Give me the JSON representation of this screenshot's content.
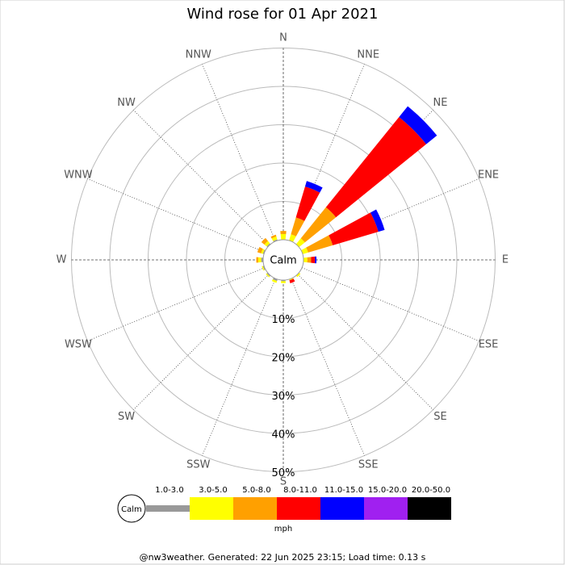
{
  "chart_data": {
    "type": "wind-rose",
    "title": "Wind rose for 01 Apr 2021",
    "calm_label": "Calm",
    "directions": [
      "N",
      "NNE",
      "NE",
      "ENE",
      "E",
      "ESE",
      "SE",
      "SSE",
      "S",
      "SSW",
      "SW",
      "WSW",
      "W",
      "WNW",
      "NW",
      "NNW"
    ],
    "series": [
      {
        "name": "1.0-3.0",
        "color": "#999999",
        "values": [
          0,
          0,
          0,
          0,
          0,
          0,
          0,
          0,
          0.3,
          0.5,
          0.3,
          0.3,
          0.5,
          0.3,
          0.3,
          0.3
        ]
      },
      {
        "name": "3.0-5.0",
        "color": "#ffff00",
        "values": [
          1.5,
          1.7,
          2,
          1.5,
          1,
          0,
          0.5,
          0.3,
          0.5,
          0.5,
          0.3,
          0.3,
          0.8,
          0.5,
          0.8,
          0.8
        ]
      },
      {
        "name": "5.0-8.0",
        "color": "#ffa000",
        "values": [
          0.8,
          4.6,
          10.4,
          6.7,
          1,
          0,
          0,
          0,
          0,
          0,
          0,
          0,
          0.5,
          1,
          1,
          0.5
        ]
      },
      {
        "name": "8.0-11.0",
        "color": "#ff0000",
        "values": [
          0,
          8.4,
          30.3,
          12.4,
          1,
          0,
          0,
          0.8,
          0,
          0,
          0,
          0,
          0,
          0,
          0,
          0
        ]
      },
      {
        "name": "11.0-15.0",
        "color": "#0000ff",
        "values": [
          0,
          1.5,
          3.6,
          1.7,
          0.4,
          0,
          0,
          0,
          0,
          0,
          0,
          0,
          0,
          0,
          0,
          0
        ]
      },
      {
        "name": "15.0-20.0",
        "color": "#a020f0",
        "values": [
          0,
          0,
          0,
          0,
          0,
          0,
          0,
          0,
          0,
          0,
          0,
          0,
          0,
          0,
          0,
          0
        ]
      },
      {
        "name": "20.0-50.0",
        "color": "#000000",
        "values": [
          0,
          0,
          0,
          0,
          0,
          0,
          0,
          0,
          0,
          0,
          0,
          0,
          0,
          0,
          0,
          0
        ]
      }
    ],
    "rlim": [
      0,
      50
    ],
    "rticks": [
      {
        "value": 10,
        "label": "10%"
      },
      {
        "value": 20,
        "label": "20%"
      },
      {
        "value": 30,
        "label": "30%"
      },
      {
        "value": 40,
        "label": "40%"
      },
      {
        "value": 50,
        "label": "50%"
      }
    ],
    "unit": "mph",
    "footer": "@nw3weather. Generated: 22 Jun 2025 23:15; Load time: 0.13 s"
  }
}
